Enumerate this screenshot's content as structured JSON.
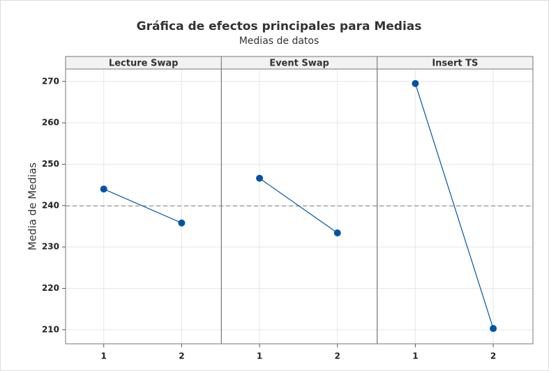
{
  "chart_data": {
    "type": "line",
    "title": "Gráfica de efectos principales para Medias",
    "subtitle": "Medias de datos",
    "ylabel": "Media de Medias",
    "ylim": [
      206.6,
      273
    ],
    "yticks": [
      210,
      220,
      230,
      240,
      250,
      260,
      270
    ],
    "grid": true,
    "color": "#0054a6",
    "reference_line": 239.9,
    "panels": [
      {
        "name": "Lecture Swap",
        "categories": [
          "1",
          "2"
        ],
        "values": [
          244,
          235.8
        ]
      },
      {
        "name": "Event Swap",
        "categories": [
          "1",
          "2"
        ],
        "values": [
          246.6,
          233.4
        ]
      },
      {
        "name": "Insert TS",
        "categories": [
          "1",
          "2"
        ],
        "values": [
          269.5,
          210.3
        ]
      }
    ]
  }
}
